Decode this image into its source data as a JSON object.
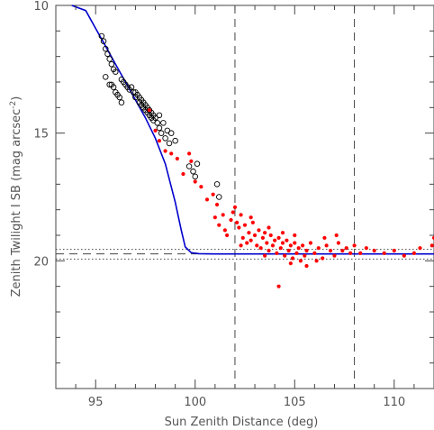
{
  "chart_data": {
    "type": "scatter",
    "title": "",
    "xlabel": "Sun Zenith Distance (deg)",
    "ylabel": "Zenith Twilight I SB (mag arcsec",
    "ylabel_sup": "-2",
    "ylabel_close": ")",
    "xlim": [
      93,
      112
    ],
    "ylim": [
      25,
      10
    ],
    "y_inverted": true,
    "x_ticks": [
      95,
      100,
      105,
      110
    ],
    "y_ticks": [
      10,
      15,
      20
    ],
    "colors": {
      "open": "#000000",
      "filled": "#ff0000",
      "model": "#0000cc",
      "ref": "#444444"
    },
    "vertical_dashed_x": [
      102,
      108
    ],
    "horizontal_dashed_y": 19.73,
    "horizontal_dotted_y": [
      19.55,
      19.93
    ],
    "series": [
      {
        "marker": "open-circle",
        "points": [
          [
            95.3,
            11.2
          ],
          [
            95.4,
            11.4
          ],
          [
            95.5,
            11.7
          ],
          [
            95.6,
            11.9
          ],
          [
            95.7,
            12.1
          ],
          [
            95.8,
            12.3
          ],
          [
            95.9,
            12.5
          ],
          [
            96.0,
            12.6
          ],
          [
            95.5,
            12.8
          ],
          [
            95.7,
            13.1
          ],
          [
            95.8,
            13.1
          ],
          [
            95.9,
            13.2
          ],
          [
            96.0,
            13.4
          ],
          [
            96.1,
            13.5
          ],
          [
            96.2,
            13.6
          ],
          [
            96.3,
            13.8
          ],
          [
            96.3,
            12.9
          ],
          [
            96.4,
            13.0
          ],
          [
            96.5,
            13.1
          ],
          [
            96.6,
            13.2
          ],
          [
            96.7,
            13.3
          ],
          [
            96.8,
            13.2
          ],
          [
            96.9,
            13.4
          ],
          [
            97.0,
            13.4
          ],
          [
            97.0,
            13.6
          ],
          [
            97.1,
            13.5
          ],
          [
            97.2,
            13.6
          ],
          [
            97.3,
            13.7
          ],
          [
            97.4,
            13.8
          ],
          [
            97.5,
            13.9
          ],
          [
            97.6,
            14.0
          ],
          [
            97.7,
            14.1
          ],
          [
            97.8,
            14.2
          ],
          [
            97.9,
            14.3
          ],
          [
            98.0,
            14.4
          ],
          [
            97.2,
            13.8
          ],
          [
            97.3,
            13.9
          ],
          [
            97.4,
            14.0
          ],
          [
            97.5,
            14.1
          ],
          [
            97.6,
            14.2
          ],
          [
            97.7,
            14.3
          ],
          [
            97.8,
            14.4
          ],
          [
            97.9,
            14.5
          ],
          [
            98.1,
            14.6
          ],
          [
            98.2,
            14.8
          ],
          [
            98.3,
            15.0
          ],
          [
            98.5,
            15.2
          ],
          [
            98.7,
            15.4
          ],
          [
            98.2,
            14.3
          ],
          [
            98.4,
            14.6
          ],
          [
            98.6,
            14.9
          ],
          [
            98.8,
            15.0
          ],
          [
            99.0,
            15.3
          ],
          [
            99.7,
            16.3
          ],
          [
            99.9,
            16.5
          ],
          [
            100.1,
            16.2
          ],
          [
            100.0,
            16.7
          ],
          [
            101.1,
            17.0
          ],
          [
            101.2,
            17.5
          ]
        ]
      },
      {
        "marker": "filled-circle",
        "points": [
          [
            97.7,
            14.1
          ],
          [
            98.0,
            14.9
          ],
          [
            98.2,
            15.3
          ],
          [
            98.5,
            15.7
          ],
          [
            98.8,
            15.8
          ],
          [
            99.1,
            16.0
          ],
          [
            99.4,
            16.6
          ],
          [
            99.7,
            15.8
          ],
          [
            99.8,
            16.1
          ],
          [
            100.0,
            16.9
          ],
          [
            100.3,
            17.1
          ],
          [
            100.6,
            17.6
          ],
          [
            100.9,
            17.4
          ],
          [
            101.1,
            17.8
          ],
          [
            101.0,
            18.3
          ],
          [
            101.2,
            18.6
          ],
          [
            101.4,
            18.2
          ],
          [
            101.5,
            18.8
          ],
          [
            101.6,
            19.0
          ],
          [
            101.8,
            18.4
          ],
          [
            101.9,
            18.1
          ],
          [
            102.0,
            17.9
          ],
          [
            102.1,
            18.5
          ],
          [
            102.2,
            18.7
          ],
          [
            102.3,
            18.2
          ],
          [
            102.4,
            19.1
          ],
          [
            102.5,
            18.6
          ],
          [
            102.6,
            19.3
          ],
          [
            102.7,
            18.9
          ],
          [
            102.8,
            19.2
          ],
          [
            102.9,
            18.5
          ],
          [
            103.0,
            19.0
          ],
          [
            103.1,
            19.4
          ],
          [
            103.2,
            18.8
          ],
          [
            103.3,
            19.5
          ],
          [
            103.4,
            19.1
          ],
          [
            103.5,
            18.9
          ],
          [
            103.6,
            19.3
          ],
          [
            103.7,
            19.6
          ],
          [
            103.8,
            19.0
          ],
          [
            103.9,
            19.4
          ],
          [
            104.0,
            19.2
          ],
          [
            104.1,
            19.7
          ],
          [
            104.2,
            19.1
          ],
          [
            104.3,
            19.5
          ],
          [
            104.4,
            19.3
          ],
          [
            104.5,
            19.8
          ],
          [
            104.6,
            19.2
          ],
          [
            104.7,
            19.6
          ],
          [
            104.8,
            19.4
          ],
          [
            104.9,
            19.9
          ],
          [
            105.0,
            19.3
          ],
          [
            105.1,
            19.7
          ],
          [
            105.2,
            19.5
          ],
          [
            105.3,
            20.0
          ],
          [
            105.4,
            19.4
          ],
          [
            105.5,
            19.8
          ],
          [
            105.6,
            19.6
          ],
          [
            105.8,
            19.3
          ],
          [
            106.0,
            19.7
          ],
          [
            106.2,
            19.5
          ],
          [
            106.4,
            19.9
          ],
          [
            106.6,
            19.4
          ],
          [
            106.8,
            19.6
          ],
          [
            107.0,
            19.8
          ],
          [
            107.2,
            19.3
          ],
          [
            107.4,
            19.6
          ],
          [
            107.6,
            19.5
          ],
          [
            107.8,
            19.7
          ],
          [
            108.0,
            19.4
          ],
          [
            108.3,
            19.7
          ],
          [
            108.6,
            19.5
          ],
          [
            109.0,
            19.6
          ],
          [
            109.5,
            19.7
          ],
          [
            110.0,
            19.6
          ],
          [
            110.5,
            19.8
          ],
          [
            111.0,
            19.7
          ],
          [
            111.3,
            19.5
          ],
          [
            112.0,
            19.1
          ],
          [
            111.9,
            19.4
          ],
          [
            104.2,
            21.0
          ],
          [
            102.3,
            19.4
          ],
          [
            103.5,
            19.8
          ],
          [
            104.8,
            20.1
          ],
          [
            105.6,
            20.2
          ],
          [
            106.1,
            20.0
          ],
          [
            106.5,
            19.1
          ],
          [
            107.1,
            19.0
          ],
          [
            105.0,
            19.0
          ],
          [
            104.4,
            18.9
          ],
          [
            103.7,
            18.7
          ],
          [
            102.8,
            18.3
          ]
        ]
      }
    ],
    "model_curve": [
      [
        93.8,
        9.3
      ],
      [
        94.5,
        10.2
      ],
      [
        95.0,
        10.9
      ],
      [
        95.5,
        11.6
      ],
      [
        96.0,
        12.3
      ],
      [
        96.5,
        13.0
      ],
      [
        97.0,
        13.7
      ],
      [
        97.5,
        14.4
      ],
      [
        98.0,
        15.2
      ],
      [
        98.5,
        16.2
      ],
      [
        99.0,
        17.7
      ],
      [
        99.3,
        18.8
      ],
      [
        99.5,
        19.45
      ],
      [
        99.8,
        19.68
      ],
      [
        100.2,
        19.72
      ],
      [
        101.0,
        19.73
      ],
      [
        103.0,
        19.73
      ],
      [
        106.0,
        19.73
      ],
      [
        109.0,
        19.73
      ],
      [
        112.0,
        19.73
      ]
    ]
  }
}
